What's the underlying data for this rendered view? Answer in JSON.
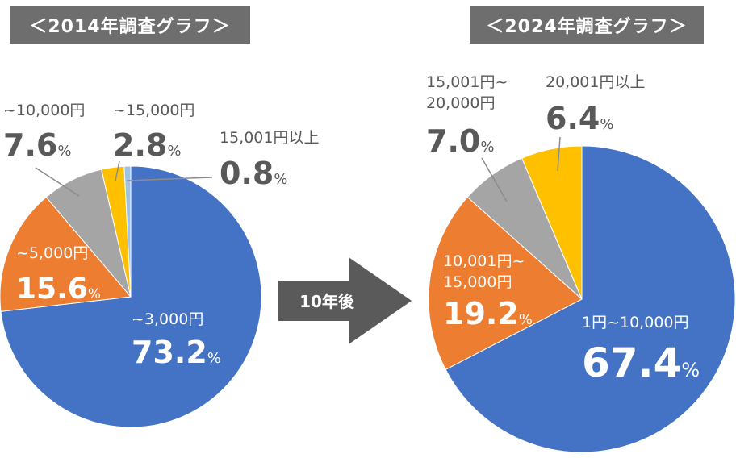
{
  "chart_data": [
    {
      "type": "pie",
      "title": "＜2014年調査グラフ＞",
      "slices": [
        {
          "label": "~3,000円",
          "value": 73.2,
          "color": "#4472c4"
        },
        {
          "label": "~5,000円",
          "value": 15.6,
          "color": "#ed7d31"
        },
        {
          "label": "~10,000円",
          "value": 7.6,
          "color": "#a5a5a5"
        },
        {
          "label": "~15,000円",
          "value": 2.8,
          "color": "#ffc000"
        },
        {
          "label": "15,001円以上",
          "value": 0.8,
          "color": "#9dc3e6"
        }
      ]
    },
    {
      "type": "pie",
      "title": "＜2024年調査グラフ＞",
      "slices": [
        {
          "label": "1円~10,000円",
          "value": 67.4,
          "color": "#4472c4"
        },
        {
          "label": "10,001円~15,000円",
          "value": 19.2,
          "color": "#ed7d31"
        },
        {
          "label": "15,001円~20,000円",
          "value": 7.0,
          "color": "#a5a5a5"
        },
        {
          "label": "20,001円以上",
          "value": 6.4,
          "color": "#ffc000"
        }
      ]
    }
  ],
  "arrow_label": "10年後",
  "percent_sign": "%",
  "colors": {
    "title_bg": "#6e6e6e",
    "arrow": "#5a5a5a",
    "label_text": "#595959",
    "leader": "#8c8c8c"
  }
}
